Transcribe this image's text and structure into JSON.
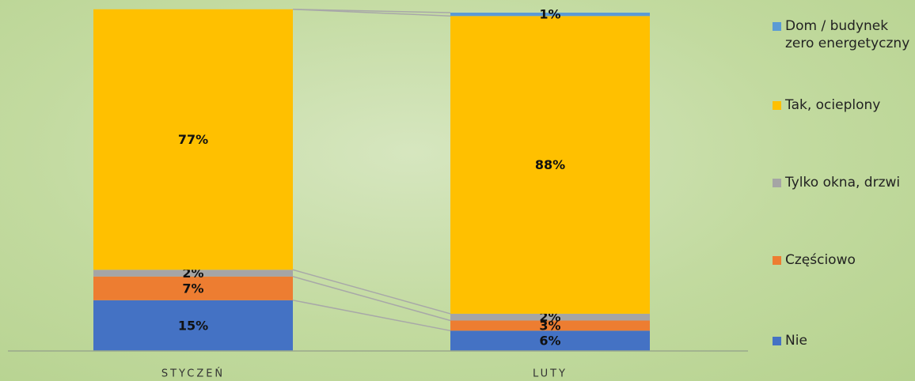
{
  "chart_data": {
    "type": "stacked_bar",
    "categories": [
      "STYCZEŃ",
      "LUTY"
    ],
    "series": [
      {
        "name": "Nie",
        "color": "#4472c4",
        "values": [
          15,
          6
        ],
        "value_labels": [
          "15%",
          "6%"
        ]
      },
      {
        "name": "Częściowo",
        "color": "#ed7d31",
        "values": [
          7,
          3
        ],
        "value_labels": [
          "7%",
          "3%"
        ]
      },
      {
        "name": "Tylko okna, drzwi",
        "color": "#a5a5a5",
        "values": [
          2,
          2
        ],
        "value_labels": [
          "2%",
          "2%"
        ]
      },
      {
        "name": "Tak, ocieplony",
        "color": "#ffc000",
        "values": [
          77,
          88
        ],
        "value_labels": [
          "77%",
          "88%"
        ]
      },
      {
        "name": "Dom / budynek zero energetyczny",
        "color": "#5b9bd5",
        "values": [
          0,
          1
        ],
        "value_labels": [
          null,
          "1%"
        ]
      }
    ],
    "ylim": [
      0,
      100
    ],
    "legend": "right"
  }
}
